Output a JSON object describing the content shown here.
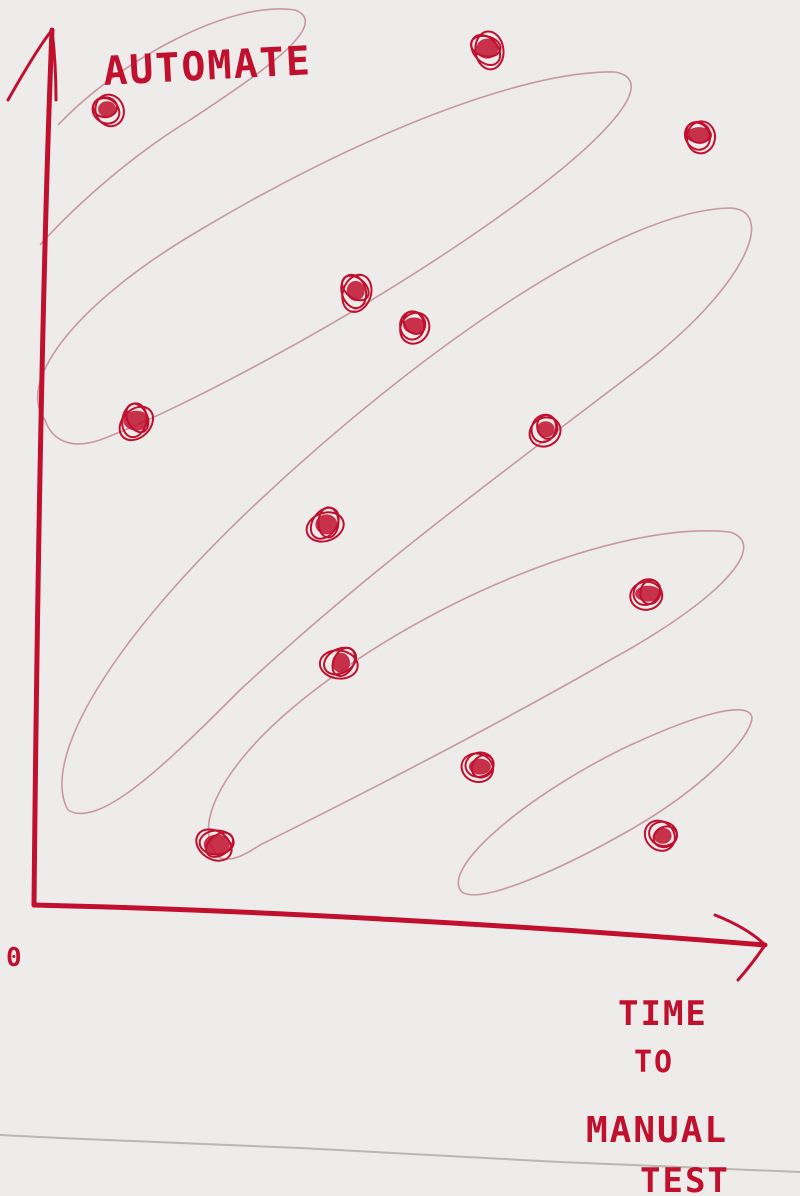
{
  "labels": {
    "y_axis": "AUTOMATE",
    "origin": "0",
    "x_axis_line1": "TIME",
    "x_axis_line2": "TO",
    "x_axis_line3": "MANUAL",
    "x_axis_line4": "TEST"
  },
  "colors": {
    "ink": "#c0102e",
    "paper": "#eeecea",
    "background": "#d9d6d3"
  },
  "chart_data": {
    "type": "scatter",
    "title": "",
    "ylabel": "AUTOMATE",
    "xlabel": "TIME TO MANUAL TEST",
    "origin_label": "0",
    "grid": false,
    "legend": "none",
    "series": [
      {
        "points": [
          {
            "x": 0.1,
            "y": 0.92
          },
          {
            "x": 0.62,
            "y": 0.99
          },
          {
            "x": 0.91,
            "y": 0.89
          },
          {
            "x": 0.44,
            "y": 0.71
          },
          {
            "x": 0.52,
            "y": 0.67
          },
          {
            "x": 0.14,
            "y": 0.56
          },
          {
            "x": 0.7,
            "y": 0.55
          },
          {
            "x": 0.4,
            "y": 0.44
          },
          {
            "x": 0.84,
            "y": 0.36
          },
          {
            "x": 0.42,
            "y": 0.28
          },
          {
            "x": 0.61,
            "y": 0.16
          },
          {
            "x": 0.25,
            "y": 0.07
          },
          {
            "x": 0.86,
            "y": 0.08
          }
        ]
      }
    ]
  }
}
